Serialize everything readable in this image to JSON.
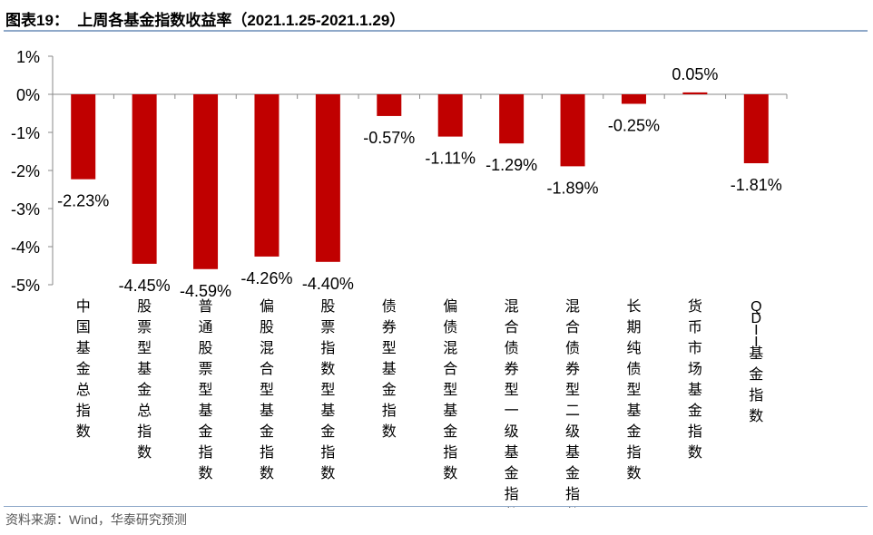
{
  "title": "图表19：  上周各基金指数收益率（2021.1.25-2021.1.29）",
  "source": "资料来源：Wind，华泰研究预测",
  "chart_data": {
    "type": "bar",
    "title": "上周各基金指数收益率（2021.1.25-2021.1.29）",
    "xlabel": "",
    "ylabel": "",
    "ylim": [
      -5,
      1
    ],
    "yticks": [
      1,
      0,
      -1,
      -2,
      -3,
      -4,
      -5
    ],
    "ytick_labels": [
      "1%",
      "0%",
      "-1%",
      "-2%",
      "-3%",
      "-4%",
      "-5%"
    ],
    "categories": [
      "中国基金总指数",
      "股票型基金总指数",
      "普通股票型基金指数",
      "偏股混合型基金指数",
      "股票指数型基金指数",
      "债券型基金指数",
      "偏债混合型基金指数",
      "混合债券型一级基金指数",
      "混合债券型二级基金指数",
      "长期纯债型基金指数",
      "货币市场基金指数",
      "QDII基金指数"
    ],
    "values": [
      -2.23,
      -4.45,
      -4.59,
      -4.26,
      -4.4,
      -0.57,
      -1.11,
      -1.29,
      -1.89,
      -0.25,
      0.05,
      -1.81
    ],
    "data_labels": [
      "-2.23%",
      "-4.45%",
      "-4.59%",
      "-4.26%",
      "-4.40%",
      "-0.57%",
      "-1.11%",
      "-1.29%",
      "-1.89%",
      "-0.25%",
      "0.05%",
      "-1.81%"
    ],
    "bar_color": "#c00000",
    "grid": false,
    "legend": "none"
  }
}
